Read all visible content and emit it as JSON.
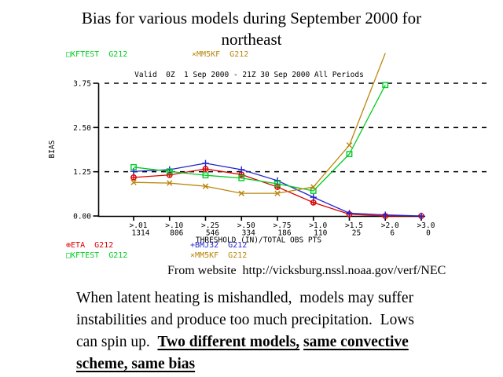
{
  "slide": {
    "title_line1": "Bias for various models during September 2000 for",
    "title_line2": "northeast",
    "source_note": "From website  http://vicksburg.nssl.noaa.gov/verf/NEC",
    "body": {
      "line1": "When latent heating is mishandled,  models may suffer",
      "line2": "instabilities and produce too much precipitation.  Lows",
      "line3_plain": "can spin up.  ",
      "line3_underline1": "Two different models,",
      "line3_space": " ",
      "line3_underline2": "same convective",
      "line4_underline": "scheme, same bias"
    }
  },
  "chart_data": {
    "type": "line",
    "title": "Valid  0Z  1 Sep 2000 - 21Z 30 Sep 2000 All Periods",
    "ylabel": "BIAS",
    "xlabel": "THRESHOLD (IN)/TOTAL OBS PTS",
    "categories": [
      ">.01",
      ">.10",
      ">.25",
      ">.50",
      ">.75",
      ">1.0",
      ">1.5",
      ">2.0",
      ">3.0"
    ],
    "obs_counts": [
      "1314",
      "806",
      "546",
      "334",
      "186",
      "110",
      "25",
      "6",
      "0"
    ],
    "yticks": [
      "0.00",
      "1.25",
      "2.50",
      "3.75"
    ],
    "ytick_values": [
      0,
      1.25,
      2.5,
      3.75
    ],
    "ylim": [
      0,
      3.75
    ],
    "grid": "horizontal dashed lines at y ticks",
    "legend_position": "top and bottom",
    "marker_display_max": 4.0,
    "series": [
      {
        "name": "ETA",
        "grid_id": "G212",
        "color": "#dd0000",
        "marker": "circle-plus",
        "values": [
          1.09,
          1.16,
          1.33,
          1.17,
          0.82,
          0.38,
          0.05,
          0.0,
          0.0
        ]
      },
      {
        "name": "BMJ32",
        "grid_id": "G212",
        "color": "#2222cc",
        "marker": "plus",
        "values": [
          1.26,
          1.31,
          1.49,
          1.31,
          1.0,
          0.53,
          0.08,
          0.03,
          0.0
        ]
      },
      {
        "name": "KFTEST",
        "grid_id": "G212",
        "color": "#00cc22",
        "marker": "square",
        "values": [
          1.38,
          1.26,
          1.15,
          1.07,
          0.91,
          0.71,
          1.75,
          3.7,
          null
        ]
      },
      {
        "name": "MM5KF",
        "grid_id": "G212",
        "color": "#b8860b",
        "marker": "x",
        "values": [
          0.95,
          0.93,
          0.84,
          0.64,
          0.64,
          0.82,
          2.0,
          4.6,
          null
        ]
      }
    ],
    "legend_top": [
      {
        "symbol": "□",
        "marker": "square",
        "label": "KFTEST",
        "text": "KFTEST  G212",
        "color": "#00cc22"
      },
      {
        "symbol": "×",
        "marker": "x",
        "label": "MM5KF",
        "text": "MM5KF  G212",
        "color": "#b8860b"
      }
    ],
    "legend_bottom_rows": [
      [
        {
          "symbol": "⊕",
          "marker": "circle-plus",
          "label": "ETA",
          "text": "ETA  G212",
          "color": "#dd0000"
        },
        {
          "symbol": "+",
          "marker": "plus",
          "label": "BMJ32",
          "text": "BMJ32  G212",
          "color": "#2222cc"
        }
      ],
      [
        {
          "symbol": "□",
          "marker": "square",
          "label": "KFTEST",
          "text": "KFTEST  G212",
          "color": "#00cc22"
        },
        {
          "symbol": "×",
          "marker": "x",
          "label": "MM5KF",
          "text": "MM5KF  G212",
          "color": "#b8860b"
        }
      ]
    ]
  }
}
